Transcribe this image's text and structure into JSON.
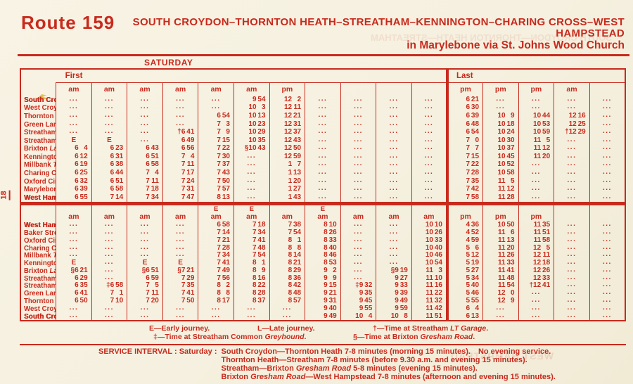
{
  "colors": {
    "ink": "#c82a1d",
    "paper": "#f6f1e1"
  },
  "masthead": {
    "route_label": "Route 159",
    "title_line1": "SOUTH CROYDON–THORNTON HEATH–STREATHAM–KENNINGTON–CHARING CROSS–WEST",
    "title_line2": "HAMPSTEAD",
    "title_line3": "in Marylebone via St. Johns Wood Church"
  },
  "day_label": "SATURDAY",
  "page_number": "18",
  "ghost": [
    "SOUTH CROYDON—THORNTON HEATH—STREATHAM",
    "WEST HAMPSTEAD"
  ],
  "tables": [
    {
      "section_labels": {
        "first": "First",
        "last": "Last"
      },
      "has_e_row": false,
      "headers": [
        {
          "e": "",
          "ap": "am"
        },
        {
          "e": "",
          "ap": "am"
        },
        {
          "e": "",
          "ap": "am"
        },
        {
          "e": "",
          "ap": "am"
        },
        {
          "e": "",
          "ap": "am"
        },
        {
          "e": "",
          "ap": "am"
        },
        {
          "e": "",
          "ap": "pm"
        },
        {
          "e": "",
          "ap": ""
        },
        {
          "e": "",
          "ap": ""
        },
        {
          "e": "",
          "ap": ""
        },
        {
          "e": "",
          "ap": ""
        },
        {
          "e": "",
          "ap": "pm"
        },
        {
          "e": "",
          "ap": "pm"
        },
        {
          "e": "",
          "ap": "pm"
        },
        {
          "e": "",
          "ap": "am"
        },
        {
          "e": "",
          "ap": ""
        }
      ],
      "rows": [
        {
          "name": "South Croydon",
          "sub": "LT Garage",
          "bold": true,
          "times": [
            "...",
            "...",
            "...",
            "...",
            "...",
            "9 54",
            "12 2",
            "...",
            "...",
            "...",
            "...",
            "6 21",
            "...",
            "...",
            "...",
            "..."
          ]
        },
        {
          "name": "West Croydon Station",
          "sub": "",
          "bold": false,
          "times": [
            "...",
            "...",
            "...",
            "...",
            "...",
            "10 3",
            "12 11",
            "...",
            "...",
            "...",
            "...",
            "6 30",
            "...",
            "...",
            "...",
            "..."
          ]
        },
        {
          "name": "Thornton Heath",
          "sub": "Clock Tower",
          "bold": false,
          "times": [
            "...",
            "...",
            "...",
            "...",
            "6 54",
            "10 13",
            "12 21",
            "...",
            "...",
            "...",
            "...",
            "6 39",
            "10 9",
            "10 44",
            "12 16",
            "..."
          ]
        },
        {
          "name": "Green Lane",
          "sub": "Streatham High Road",
          "bold": false,
          "times": [
            "...",
            "...",
            "...",
            "...",
            "7 3",
            "10 23",
            "12 31",
            "...",
            "...",
            "...",
            "...",
            "6 48",
            "10 18",
            "10 53",
            "12 25",
            "..."
          ]
        },
        {
          "name": "Streatham St.",
          "sub": "Leonards Church",
          "bold": false,
          "times": [
            "...",
            "...",
            "...",
            "†6 41",
            "7 9",
            "10 29",
            "12 37",
            "...",
            "...",
            "...",
            "...",
            "6 54",
            "10 24",
            "10 59",
            "†12 29",
            "..."
          ]
        },
        {
          "name": "Streatham",
          "sub": "Telford Avenue",
          "bold": false,
          "times": [
            "E",
            "E",
            "...",
            "6 49",
            "7 15",
            "10 35",
            "12 43",
            "...",
            "...",
            "...",
            "...",
            "7 0",
            "10 30",
            "11 5",
            "...",
            "..."
          ]
        },
        {
          "name": "Brixton",
          "sub": "Lambeth Town Hall",
          "bold": false,
          "times": [
            "6 4",
            "6 23",
            "6 43",
            "6 56",
            "7 22",
            "§10 43",
            "12 50",
            "...",
            "...",
            "...",
            "...",
            "7 7",
            "10 37",
            "11 12",
            "...",
            "..."
          ]
        },
        {
          "name": "Kennington",
          "sub": "Church",
          "bold": false,
          "times": [
            "6 12",
            "6 31",
            "6 51",
            "7 4",
            "7 30",
            "...",
            "12 59",
            "...",
            "...",
            "...",
            "...",
            "7 15",
            "10 45",
            "11 20",
            "...",
            "..."
          ]
        },
        {
          "name": "Millbank",
          "sub": "Thames House",
          "bold": false,
          "times": [
            "6 19",
            "6 38",
            "6 58",
            "7 11",
            "7 37",
            "...",
            "1 7",
            "...",
            "...",
            "...",
            "...",
            "7 22",
            "10 52",
            "...",
            "...",
            "..."
          ]
        },
        {
          "name": "Charing Cross",
          "sub": "Trafalgar Square",
          "bold": false,
          "times": [
            "6 25",
            "6 44",
            "7 4",
            "7 17",
            "7 43",
            "...",
            "1 13",
            "...",
            "...",
            "...",
            "...",
            "7 28",
            "10 58",
            "...",
            "...",
            "..."
          ]
        },
        {
          "name": "Oxford Circus",
          "sub": "",
          "bold": false,
          "times": [
            "6 32",
            "6 51",
            "7 11",
            "7 24",
            "7 50",
            "...",
            "1 20",
            "...",
            "...",
            "...",
            "...",
            "7 35",
            "11 5",
            "...",
            "...",
            "..."
          ]
        },
        {
          "name": "Marylebone Road",
          "sub": "Gloucester Pl.",
          "bold": false,
          "times": [
            "6 39",
            "6 58",
            "7 18",
            "7 31",
            "7 57",
            "...",
            "1 27",
            "...",
            "...",
            "...",
            "...",
            "7 42",
            "11 12",
            "...",
            "...",
            "..."
          ]
        },
        {
          "name": "West Hampstead",
          "sub": "West End Grn.",
          "bold": true,
          "times": [
            "6 55",
            "7 14",
            "7 34",
            "7 47",
            "8 13",
            "...",
            "1 43",
            "...",
            "...",
            "...",
            "...",
            "7 58",
            "11 28",
            "...",
            "...",
            "..."
          ]
        }
      ]
    },
    {
      "section_labels": null,
      "has_e_row": true,
      "headers": [
        {
          "e": "",
          "ap": "am"
        },
        {
          "e": "",
          "ap": "am"
        },
        {
          "e": "",
          "ap": "am"
        },
        {
          "e": "",
          "ap": "am"
        },
        {
          "e": "E",
          "ap": "am"
        },
        {
          "e": "E",
          "ap": "am"
        },
        {
          "e": "",
          "ap": "am"
        },
        {
          "e": "E",
          "ap": "am"
        },
        {
          "e": "",
          "ap": "am"
        },
        {
          "e": "",
          "ap": "am"
        },
        {
          "e": "",
          "ap": "am"
        },
        {
          "e": "",
          "ap": "pm"
        },
        {
          "e": "",
          "ap": "pm"
        },
        {
          "e": "",
          "ap": "pm"
        },
        {
          "e": "",
          "ap": ""
        },
        {
          "e": "",
          "ap": ""
        }
      ],
      "rows": [
        {
          "name": "West Hampstead",
          "sub": "West End Grn.",
          "bold": true,
          "times": [
            "...",
            "...",
            "...",
            "...",
            "6 58",
            "7 18",
            "7 38",
            "8 10",
            "...",
            "...",
            "10 10",
            "4 36",
            "10 50",
            "11 35",
            "...",
            "..."
          ]
        },
        {
          "name": "Baker Street",
          "sub": "LT Station",
          "bold": false,
          "times": [
            "...",
            "...",
            "...",
            "...",
            "7 14",
            "7 34",
            "7 54",
            "8 26",
            "...",
            "...",
            "10 26",
            "4 52",
            "11 6",
            "11 51",
            "...",
            "..."
          ]
        },
        {
          "name": "Oxford Circus",
          "sub": "",
          "bold": false,
          "times": [
            "...",
            "...",
            "...",
            "...",
            "7 21",
            "7 41",
            "8 1",
            "8 33",
            "...",
            "...",
            "10 33",
            "4 59",
            "11 13",
            "11 58",
            "...",
            "..."
          ]
        },
        {
          "name": "Charing Cross",
          "sub": "Trafalgar Square",
          "bold": false,
          "times": [
            "...",
            "...",
            "...",
            "...",
            "7 28",
            "7 48",
            "8 8",
            "8 40",
            "...",
            "...",
            "10 40",
            "5 6",
            "11 20",
            "12 5",
            "...",
            "..."
          ]
        },
        {
          "name": "Millbank",
          "sub": "Thames House",
          "bold": false,
          "times": [
            "...",
            "...",
            "...",
            "...",
            "7 34",
            "7 54",
            "8 14",
            "8 46",
            "...",
            "...",
            "10 46",
            "5 12",
            "11 26",
            "12 11",
            "...",
            "..."
          ]
        },
        {
          "name": "Kennington",
          "sub": "Church",
          "bold": false,
          "times": [
            "E",
            "...",
            "E",
            "E",
            "7 41",
            "8 1",
            "8 21",
            "8 53",
            "...",
            "...",
            "10 54",
            "5 19",
            "11 33",
            "12 18",
            "...",
            "..."
          ]
        },
        {
          "name": "Brixton",
          "sub": "Lambeth Town Hall",
          "bold": false,
          "times": [
            "§6 21",
            "...",
            "§6 51",
            "§7 21",
            "7 49",
            "8 9",
            "8 29",
            "9 2",
            "...",
            "§9 19",
            "11 3",
            "5 27",
            "11 41",
            "12 26",
            "...",
            "..."
          ]
        },
        {
          "name": "Streatham",
          "sub": "Telford Avenue",
          "bold": false,
          "times": [
            "6 29",
            "...",
            "6 59",
            "7 29",
            "7 56",
            "8 16",
            "8 36",
            "9 9",
            "...",
            "9 27",
            "11 10",
            "5 34",
            "11 48",
            "12 33",
            "...",
            "..."
          ]
        },
        {
          "name": "Streatham St.",
          "sub": "Leonards Church",
          "bold": false,
          "times": [
            "6 35",
            "‡6 58",
            "7 5",
            "7 35",
            "8 2",
            "8 22",
            "8 42",
            "9 15",
            "‡9 32",
            "9 33",
            "11 16",
            "5 40",
            "11 54",
            "†12 41",
            "...",
            "..."
          ]
        },
        {
          "name": "Green Lane",
          "sub": "Streatham High Road",
          "bold": false,
          "times": [
            "6 41",
            "7 1",
            "7 11",
            "7 41",
            "8 8",
            "8 28",
            "8 48",
            "9 21",
            "9 35",
            "9 39",
            "11 22",
            "5 46",
            "12 0",
            "...",
            "...",
            "..."
          ]
        },
        {
          "name": "Thornton Heath",
          "sub": "Clock Tower",
          "bold": false,
          "times": [
            "6 50",
            "7 10",
            "7 20",
            "7 50",
            "8 17",
            "8 37",
            "8 57",
            "9 31",
            "9 45",
            "9 49",
            "11 32",
            "5 55",
            "12 9",
            "...",
            "...",
            "..."
          ]
        },
        {
          "name": "West Croydon Station",
          "sub": "",
          "bold": false,
          "times": [
            "...",
            "...",
            "...",
            "...",
            "...",
            "...",
            "...",
            "9 40",
            "9 55",
            "9 59",
            "11 42",
            "6 4",
            "...",
            "...",
            "...",
            "..."
          ]
        },
        {
          "name": "South Croydon",
          "sub": "LT Garage",
          "bold": true,
          "times": [
            "...",
            "...",
            "...",
            "...",
            "...",
            "...",
            "...",
            "9 49",
            "10 4",
            "10 8",
            "11 51",
            "6 13",
            "...",
            "...",
            "...",
            "..."
          ]
        }
      ]
    }
  ],
  "footnotes": {
    "line1": [
      {
        "pre": "E—Early journey.",
        "it": "",
        "post": ""
      },
      {
        "pre": "L—Late journey.",
        "it": "",
        "post": ""
      },
      {
        "pre": "†—Time at Streatham ",
        "it": "LT Garage",
        "post": "."
      }
    ],
    "line2": [
      {
        "pre": "‡—Time at Streatham Common ",
        "it": "Greyhound",
        "post": "."
      },
      {
        "pre": "§—Time at Brixton ",
        "it": "Gresham Road",
        "post": "."
      }
    ]
  },
  "service_interval": {
    "label": "SERVICE INTERVAL : Saturday :",
    "lines": [
      [
        {
          "t": "South Croydon—Thornton Heath 7-8 minutes (morning 15 minutes)."
        },
        {
          "t": "  No evening service."
        }
      ],
      [
        {
          "t": "Thornton Heath—Streatham 7-8 minutes (before 9.30 a.m. and evening 15 minutes)."
        }
      ],
      [
        {
          "t": "Streatham—Brixton "
        },
        {
          "t": "Gresham Road",
          "i": true
        },
        {
          "t": " 5-8 minutes (evening 15 minutes)."
        }
      ],
      [
        {
          "t": "Brixton "
        },
        {
          "t": "Gresham Road",
          "i": true
        },
        {
          "t": "—West Hampstead 7-8 minutes (afternoon and evening 15 minutes)."
        }
      ]
    ]
  }
}
